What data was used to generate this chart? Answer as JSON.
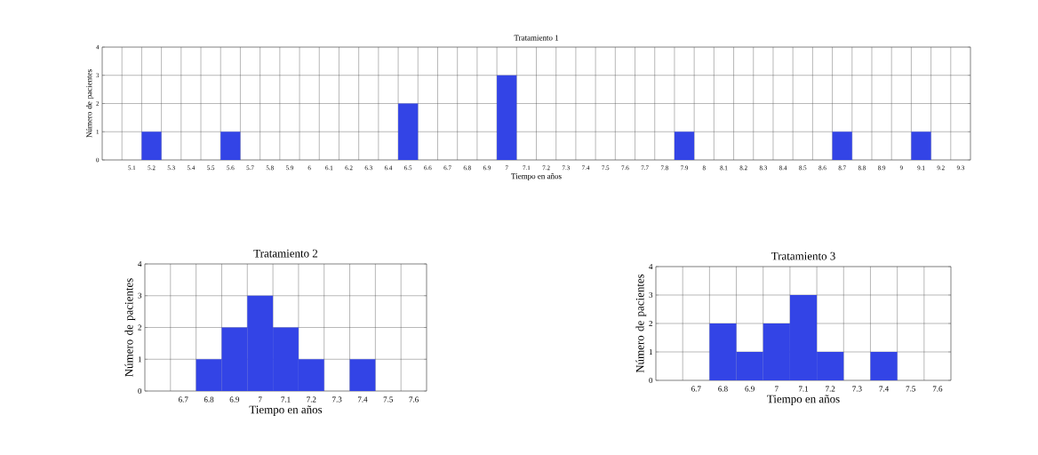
{
  "chart_data": [
    {
      "type": "bar",
      "title": "Tratamiento 1",
      "xlabel": "Tiempo en años",
      "ylabel": "Número de pacientes",
      "categories": [
        null,
        "5.1",
        "5.2",
        "5.3",
        "5.4",
        "5.5",
        "5.6",
        "5.7",
        "5.8",
        "5.9",
        "6",
        "6.1",
        "6.2",
        "6.3",
        "6.4",
        "6.5",
        "6.6",
        "6.7",
        "6.8",
        "6.9",
        "7",
        "7.1",
        "7.2",
        "7.3",
        "7.4",
        "7.5",
        "7.6",
        "7.7",
        "7.8",
        "7.9",
        "8",
        "8.1",
        "8.2",
        "8.3",
        "8.4",
        "8.5",
        "8.6",
        "8.7",
        "8.8",
        "8.9",
        "9",
        "9.1",
        "9.2",
        "9.3"
      ],
      "values": [
        0,
        0,
        1,
        0,
        0,
        0,
        1,
        0,
        0,
        0,
        0,
        0,
        0,
        0,
        0,
        2,
        0,
        0,
        0,
        0,
        3,
        0,
        0,
        0,
        0,
        0,
        0,
        0,
        0,
        1,
        0,
        0,
        0,
        0,
        0,
        0,
        0,
        1,
        0,
        0,
        0,
        1,
        0,
        0
      ],
      "color": "#3344e6",
      "ylim": [
        0,
        4
      ],
      "yticks": [
        0,
        1,
        2,
        3,
        4
      ],
      "grid": true
    },
    {
      "type": "bar",
      "title": "Tratamiento 2",
      "xlabel": "Tiempo en años",
      "ylabel": "Número de pacientes",
      "categories": [
        null,
        "6.7",
        "6.8",
        "6.9",
        "7",
        "7.1",
        "7.2",
        "7.3",
        "7.4",
        "7.5",
        "7.6"
      ],
      "values": [
        0,
        0,
        1,
        2,
        3,
        2,
        1,
        0,
        1,
        0,
        0
      ],
      "color": "#3344e6",
      "ylim": [
        0,
        4
      ],
      "yticks": [
        0,
        1,
        2,
        3,
        4
      ],
      "grid": true
    },
    {
      "type": "bar",
      "title": "Tratamiento 3",
      "xlabel": "Tiempo en años",
      "ylabel": "Número de pacientes",
      "categories": [
        null,
        "6.7",
        "6.8",
        "6.9",
        "7",
        "7.1",
        "7.2",
        "7.3",
        "7.4",
        "7.5",
        "7.6"
      ],
      "values": [
        0,
        0,
        2,
        1,
        2,
        3,
        1,
        0,
        1,
        0,
        0
      ],
      "color": "#3344e6",
      "ylim": [
        0,
        4
      ],
      "yticks": [
        0,
        1,
        2,
        3,
        4
      ],
      "grid": true
    }
  ]
}
